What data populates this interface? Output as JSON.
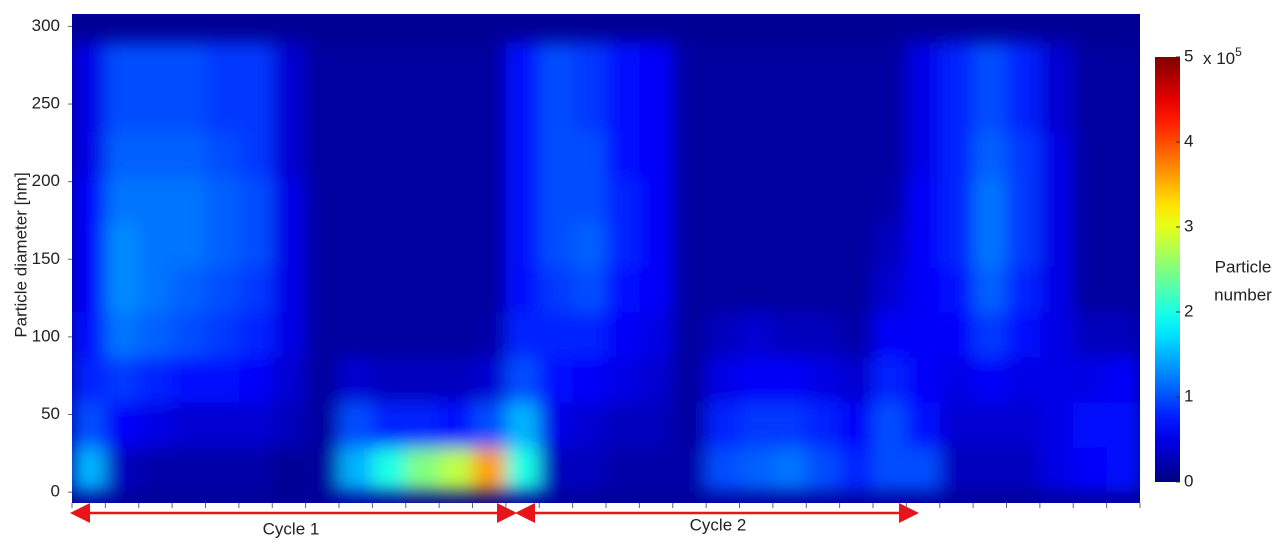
{
  "chart_data": {
    "type": "heatmap",
    "y_label": "Particle diameter [nm]",
    "ylim": [
      -7,
      308
    ],
    "yticks": [
      0,
      50,
      100,
      150,
      200,
      250,
      300
    ],
    "ybins": [
      0,
      29,
      58,
      87,
      116,
      145,
      174,
      203,
      232,
      261,
      290
    ],
    "z": [
      [
        1.5,
        0.3,
        0.2,
        0.2,
        0.2,
        0.2,
        0.1,
        0.15,
        1.5,
        2.0,
        2.5,
        2.8,
        3.6,
        2.0,
        0.3,
        0.3,
        0.2,
        0.2,
        0.2,
        1.0,
        1.1,
        1.2,
        1.0,
        0.8,
        1.0,
        1.0,
        0.3,
        0.3,
        0.3,
        0.5,
        0.6,
        0.7
      ],
      [
        1.0,
        0.6,
        0.5,
        0.4,
        0.4,
        0.4,
        0.3,
        0.15,
        1.0,
        0.8,
        0.8,
        0.7,
        1.0,
        1.5,
        0.5,
        0.4,
        0.3,
        0.3,
        0.15,
        0.8,
        0.9,
        0.9,
        0.8,
        0.6,
        1.0,
        0.7,
        0.4,
        0.4,
        0.4,
        0.5,
        0.7,
        0.7
      ],
      [
        0.8,
        0.9,
        0.8,
        0.7,
        0.7,
        0.6,
        0.4,
        0.15,
        0.4,
        0.3,
        0.3,
        0.3,
        0.4,
        1.0,
        0.7,
        0.6,
        0.5,
        0.4,
        0.15,
        0.5,
        0.6,
        0.6,
        0.5,
        0.4,
        0.8,
        0.6,
        0.5,
        0.6,
        0.5,
        0.5,
        0.5,
        0.6
      ],
      [
        0.7,
        1.2,
        1.1,
        1.0,
        0.9,
        0.8,
        0.5,
        0.15,
        0.15,
        0.15,
        0.15,
        0.15,
        0.2,
        0.8,
        0.8,
        0.8,
        0.6,
        0.5,
        0.15,
        0.3,
        0.4,
        0.3,
        0.3,
        0.2,
        0.6,
        0.6,
        0.6,
        0.9,
        0.7,
        0.5,
        0.3,
        0.3
      ],
      [
        0.6,
        1.3,
        1.2,
        1.1,
        1.0,
        0.9,
        0.5,
        0.15,
        0.15,
        0.15,
        0.15,
        0.15,
        0.15,
        0.7,
        0.9,
        1.0,
        0.7,
        0.6,
        0.15,
        0.15,
        0.15,
        0.15,
        0.15,
        0.15,
        0.4,
        0.6,
        0.7,
        1.1,
        0.8,
        0.5,
        0.15,
        0.15
      ],
      [
        0.6,
        1.3,
        1.2,
        1.2,
        1.1,
        1.0,
        0.5,
        0.15,
        0.15,
        0.15,
        0.15,
        0.15,
        0.15,
        0.7,
        1.0,
        1.1,
        0.8,
        0.6,
        0.15,
        0.15,
        0.15,
        0.15,
        0.15,
        0.15,
        0.3,
        0.6,
        0.8,
        1.2,
        0.9,
        0.5,
        0.15,
        0.15
      ],
      [
        0.6,
        1.2,
        1.2,
        1.2,
        1.1,
        1.0,
        0.5,
        0.15,
        0.15,
        0.15,
        0.15,
        0.15,
        0.15,
        0.7,
        1.0,
        1.0,
        0.8,
        0.6,
        0.15,
        0.15,
        0.15,
        0.15,
        0.15,
        0.15,
        0.2,
        0.6,
        0.8,
        1.2,
        0.9,
        0.5,
        0.15,
        0.15
      ],
      [
        0.5,
        1.1,
        1.1,
        1.1,
        1.0,
        0.9,
        0.4,
        0.15,
        0.15,
        0.15,
        0.15,
        0.15,
        0.15,
        0.7,
        1.0,
        1.0,
        0.7,
        0.6,
        0.15,
        0.15,
        0.15,
        0.15,
        0.15,
        0.15,
        0.15,
        0.5,
        0.8,
        1.1,
        0.9,
        0.5,
        0.15,
        0.15
      ],
      [
        0.5,
        1.0,
        1.0,
        1.0,
        0.9,
        0.9,
        0.4,
        0.15,
        0.15,
        0.15,
        0.15,
        0.15,
        0.15,
        0.7,
        1.0,
        0.9,
        0.7,
        0.6,
        0.15,
        0.15,
        0.15,
        0.15,
        0.15,
        0.15,
        0.15,
        0.5,
        0.8,
        1.0,
        0.8,
        0.4,
        0.15,
        0.15
      ],
      [
        0.5,
        1.0,
        1.0,
        1.0,
        0.9,
        0.9,
        0.4,
        0.15,
        0.15,
        0.15,
        0.15,
        0.15,
        0.15,
        0.7,
        1.0,
        0.9,
        0.7,
        0.6,
        0.15,
        0.15,
        0.15,
        0.15,
        0.15,
        0.15,
        0.15,
        0.5,
        0.8,
        1.0,
        0.8,
        0.4,
        0.15,
        0.15
      ]
    ],
    "zlim": [
      0,
      5
    ],
    "zticks": [
      0,
      1,
      2,
      3,
      4,
      5
    ],
    "colorbar_multiplier": {
      "base": "x 10",
      "exponent": "5"
    },
    "colorbar_label": [
      "Particle",
      "number"
    ],
    "annotations": [
      "Cycle 1",
      "Cycle 2"
    ]
  }
}
